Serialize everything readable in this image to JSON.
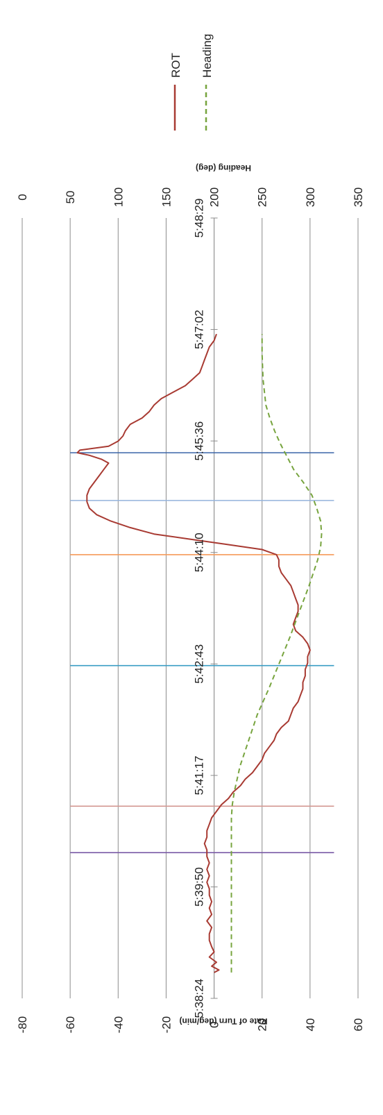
{
  "chart_data": {
    "type": "line",
    "orientation": "rotated-90-clockwise",
    "x_axis": {
      "tick_labels": [
        "5:38:24",
        "5:39:50",
        "5:41:17",
        "5:42:43",
        "5:44:10",
        "5:45:36",
        "5:47:02",
        "5:48:29"
      ],
      "range_seconds_from_first_tick": [
        0,
        605
      ]
    },
    "y_axis_left": {
      "label": "Rate of Turn (deg/min)",
      "range": [
        -80,
        60
      ],
      "ticks": [
        "-80",
        "-60",
        "-40",
        "-20",
        "0",
        "20",
        "40",
        "60"
      ],
      "gridlines": true
    },
    "y_axis_right": {
      "label": "Heading (deg)",
      "range": [
        0,
        350
      ],
      "ticks": [
        "0",
        "50",
        "100",
        "150",
        "200",
        "250",
        "300",
        "350"
      ]
    },
    "legend": {
      "position": "right",
      "entries": [
        {
          "name": "ROT",
          "color": "#a83a32",
          "style": "solid"
        },
        {
          "name": "Heading",
          "color": "#77a43e",
          "style": "dashed"
        }
      ]
    },
    "vertical_markers": [
      {
        "time_seconds": 113,
        "color": "#7a5aa6"
      },
      {
        "time_seconds": 149,
        "color": "#d49a94"
      },
      {
        "time_seconds": 258,
        "color": "#3a9dc4"
      },
      {
        "time_seconds": 344,
        "color": "#f59a58"
      },
      {
        "time_seconds": 386,
        "color": "#93b2dc"
      },
      {
        "time_seconds": 423,
        "color": "#3a64a8"
      }
    ],
    "series": [
      {
        "name": "ROT",
        "axis": "left",
        "color": "#a83a32",
        "x": [
          20,
          22,
          25,
          28,
          32,
          36,
          40,
          45,
          50,
          55,
          60,
          65,
          70,
          75,
          80,
          85,
          90,
          95,
          100,
          105,
          110,
          115,
          120,
          125,
          130,
          135,
          140,
          145,
          150,
          155,
          160,
          165,
          170,
          175,
          180,
          185,
          190,
          195,
          200,
          205,
          210,
          215,
          220,
          225,
          230,
          235,
          240,
          245,
          250,
          255,
          260,
          265,
          270,
          275,
          280,
          285,
          290,
          295,
          300,
          305,
          310,
          315,
          320,
          325,
          330,
          335,
          340,
          344,
          348,
          352,
          356,
          360,
          365,
          370,
          375,
          380,
          385,
          390,
          395,
          400,
          405,
          410,
          415,
          418,
          421,
          423,
          425,
          428,
          432,
          436,
          440,
          445,
          450,
          455,
          460,
          465,
          470,
          475,
          480,
          485,
          490,
          495,
          500,
          505,
          510,
          515
        ],
        "values": [
          0,
          2,
          -1,
          1,
          -2,
          0,
          -1,
          -2,
          -2,
          -1,
          -3,
          -1,
          -2,
          -1,
          -2,
          -2,
          -3,
          -2,
          -3,
          -2,
          -3,
          -3,
          -4,
          -3,
          -3,
          -2,
          -1,
          1,
          3,
          6,
          8,
          11,
          13,
          16,
          18,
          20,
          21,
          23,
          25,
          26,
          28,
          31,
          32,
          33,
          35,
          36,
          37,
          37,
          38,
          38,
          39,
          39,
          40,
          39,
          37,
          34,
          33,
          34,
          35,
          35,
          34,
          33,
          32,
          30,
          28,
          27,
          27,
          26,
          20,
          5,
          -10,
          -25,
          -35,
          -43,
          -49,
          -52,
          -53,
          -53,
          -52,
          -50,
          -48,
          -46,
          -44,
          -47,
          -52,
          -57,
          -56,
          -44,
          -40,
          -38,
          -37,
          -35,
          -30,
          -27,
          -25,
          -22,
          -17,
          -12,
          -9,
          -6,
          -5,
          -4,
          -3,
          -2,
          0,
          1
        ]
      },
      {
        "name": "Heading",
        "axis": "right",
        "color": "#77a43e",
        "x": [
          20,
          50,
          80,
          110,
          140,
          150,
          160,
          170,
          180,
          200,
          220,
          240,
          260,
          280,
          300,
          320,
          340,
          350,
          360,
          370,
          380,
          390,
          400,
          410,
          420,
          430,
          440,
          450,
          460,
          480,
          500,
          515
        ],
        "values": [
          218,
          218,
          218,
          218,
          218,
          219,
          221,
          224,
          227,
          236,
          245,
          257,
          268,
          279,
          289,
          299,
          308,
          311,
          312,
          311,
          307,
          302,
          293,
          283,
          276,
          269,
          263,
          258,
          254,
          251,
          250,
          250
        ]
      }
    ]
  }
}
